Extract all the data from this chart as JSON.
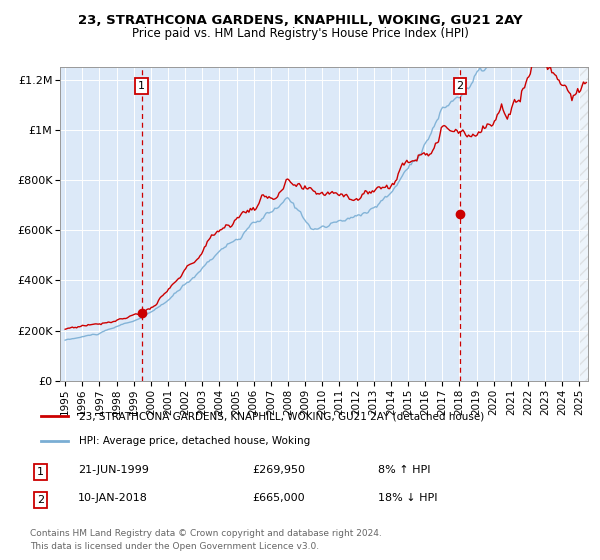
{
  "title": "23, STRATHCONA GARDENS, KNAPHILL, WOKING, GU21 2AY",
  "subtitle": "Price paid vs. HM Land Registry's House Price Index (HPI)",
  "legend_label_red": "23, STRATHCONA GARDENS, KNAPHILL, WOKING, GU21 2AY (detached house)",
  "legend_label_blue": "HPI: Average price, detached house, Woking",
  "annotation1_date": "21-JUN-1999",
  "annotation1_price": "£269,950",
  "annotation1_hpi": "8% ↑ HPI",
  "annotation2_date": "10-JAN-2018",
  "annotation2_price": "£665,000",
  "annotation2_hpi": "18% ↓ HPI",
  "footnote1": "Contains HM Land Registry data © Crown copyright and database right 2024.",
  "footnote2": "This data is licensed under the Open Government Licence v3.0.",
  "bg_color": "#dce9f8",
  "red_color": "#cc0000",
  "blue_color": "#7aaed4",
  "sale1_year": 1999.47,
  "sale1_price": 269950,
  "sale2_year": 2018.03,
  "sale2_price": 665000,
  "ylim_max": 1250000,
  "ylim_min": 0,
  "xlim_min": 1994.7,
  "xlim_max": 2025.5,
  "yticks": [
    0,
    200000,
    400000,
    600000,
    800000,
    1000000,
    1200000
  ],
  "ytick_labels": [
    "£0",
    "£200K",
    "£400K",
    "£600K",
    "£800K",
    "£1M",
    "£1.2M"
  ],
  "xticks": [
    1995,
    1996,
    1997,
    1998,
    1999,
    2000,
    2001,
    2002,
    2003,
    2004,
    2005,
    2006,
    2007,
    2008,
    2009,
    2010,
    2011,
    2012,
    2013,
    2014,
    2015,
    2016,
    2017,
    2018,
    2019,
    2020,
    2021,
    2022,
    2023,
    2024,
    2025
  ]
}
